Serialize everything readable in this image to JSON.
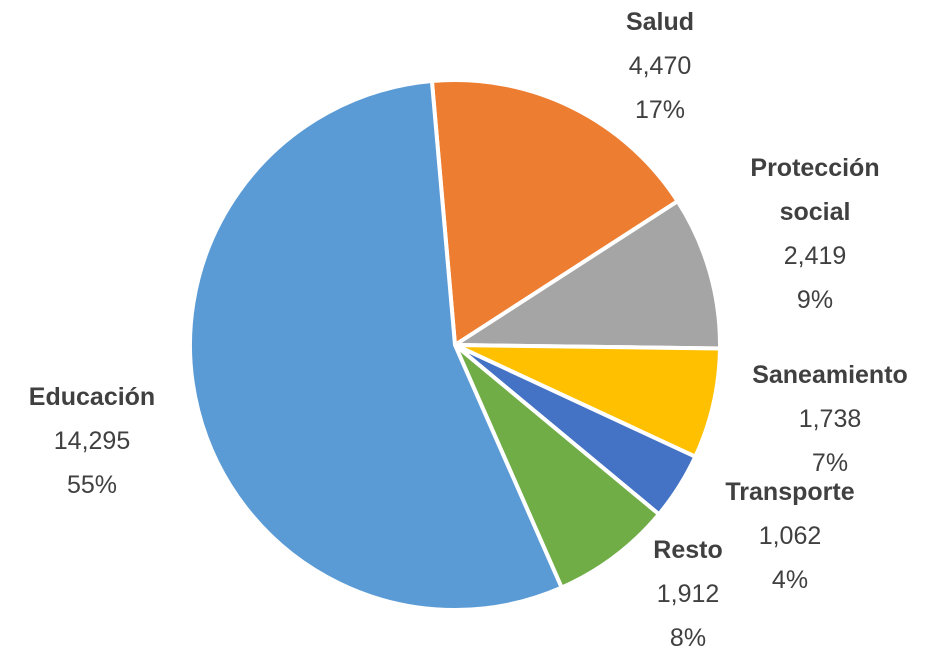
{
  "chart_data": {
    "type": "pie",
    "categories": [
      "Salud",
      "Protección social",
      "Saneamiento",
      "Transporte",
      "Resto",
      "Educación"
    ],
    "values": [
      4470,
      2419,
      1738,
      1062,
      1912,
      14295
    ],
    "value_labels": [
      "4,470",
      "2,419",
      "1,738",
      "1,062",
      "1,912",
      "14,295"
    ],
    "percentages": [
      17,
      9,
      7,
      4,
      8,
      55
    ],
    "percentage_labels": [
      "17%",
      "9%",
      "7%",
      "4%",
      "8%",
      "55%"
    ],
    "colors": [
      "#ed7d31",
      "#a5a5a5",
      "#ffc000",
      "#4472c4",
      "#70ad47",
      "#5b9bd5"
    ]
  }
}
